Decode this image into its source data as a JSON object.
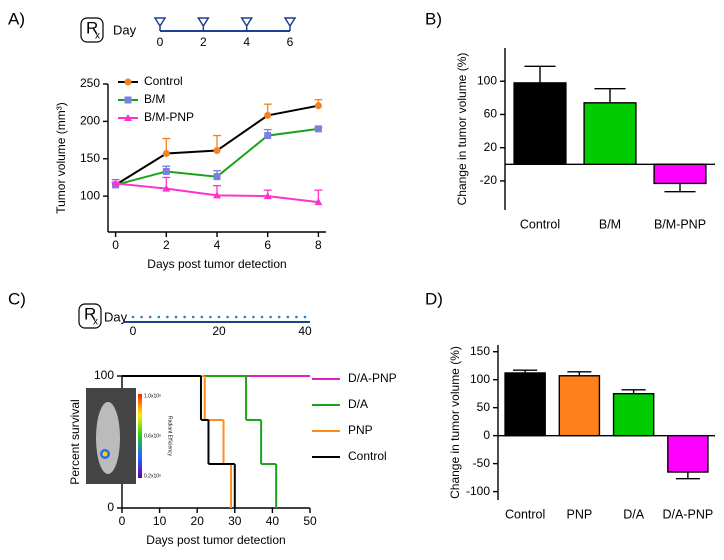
{
  "chart_data": [
    {
      "panel": "A)",
      "type": "line",
      "schedule": {
        "symbol": "R",
        "symbol_sub": "x",
        "label": "Day",
        "xlim": [
          0,
          6
        ],
        "ticks": [
          0,
          2,
          4,
          6
        ],
        "doses": [
          0,
          2,
          4,
          6
        ],
        "style": "triangle"
      },
      "x": [
        0,
        2,
        4,
        6,
        8
      ],
      "xlim": [
        -0.3,
        8.3
      ],
      "xticks": [
        0,
        2,
        4,
        6,
        8
      ],
      "ylim": [
        52,
        250
      ],
      "yticks": [
        100,
        150,
        200,
        250
      ],
      "y_label": "Tumor volume (mm³)",
      "x_label": "Days post tumor detection",
      "legend": "upper left",
      "series": [
        {
          "name": "Control",
          "color": "#000000",
          "marker_color": "#f58220",
          "marker": "circle",
          "values": [
            115,
            157,
            161,
            208,
            221
          ],
          "errors": [
            3,
            20,
            20,
            15,
            8
          ]
        },
        {
          "name": "B/M",
          "color": "#1aa31a",
          "marker_color": "#7b7fe0",
          "marker": "square",
          "values": [
            115,
            133,
            126,
            181,
            190
          ],
          "errors": [
            3,
            7,
            8,
            8,
            2
          ]
        },
        {
          "name": "B/M-PNP",
          "color": "#ff33cc",
          "marker_color": "#ff33cc",
          "marker": "triangle",
          "values": [
            117,
            110,
            101,
            100,
            92
          ],
          "errors": [
            5,
            15,
            13,
            8,
            16
          ]
        }
      ]
    },
    {
      "panel": "B)",
      "type": "bar",
      "categories": [
        "Control",
        "B/M",
        "B/M-PNP"
      ],
      "values": [
        98,
        74,
        -23
      ],
      "errors": [
        20,
        17,
        10
      ],
      "colors": [
        "#000000",
        "#00cc00",
        "#ff00ff"
      ],
      "ylim": [
        -55,
        140
      ],
      "yticks": [
        100,
        60,
        20,
        -20
      ],
      "y_label": "Change in tumor volume (%)"
    },
    {
      "panel": "C)",
      "type": "step",
      "schedule": {
        "symbol": "R",
        "symbol_sub": "x",
        "label": "Day",
        "xlim": [
          0,
          40
        ],
        "ticks": [
          0,
          20,
          40
        ],
        "doses": [
          0,
          2,
          4,
          6,
          8,
          10,
          12,
          14,
          16,
          18,
          20,
          22,
          24,
          26,
          28,
          30,
          32,
          34,
          36,
          38,
          40
        ],
        "style": "dot"
      },
      "xlim": [
        0,
        50
      ],
      "xticks": [
        0,
        10,
        20,
        30,
        40,
        50
      ],
      "ylim": [
        0,
        100
      ],
      "yticks": [
        0,
        25,
        50,
        75,
        100
      ],
      "y_label": "Percent survival",
      "x_label": "Days post tumor detection",
      "legend": "right",
      "inset": {
        "labels": [
          "1.0x10⁸",
          "0.6x10⁸",
          "0.2x10⁸"
        ],
        "title": "Radiant Efficiency"
      },
      "series": [
        {
          "name": "D/A-PNP",
          "color": "#e020c0",
          "x": [
            0,
            50
          ],
          "values": [
            100,
            100
          ]
        },
        {
          "name": "D/A",
          "color": "#1aa31a",
          "x": [
            0,
            33,
            37,
            41
          ],
          "values": [
            100,
            66.7,
            33.3,
            0
          ]
        },
        {
          "name": "PNP",
          "color": "#ff8c1a",
          "x": [
            0,
            22,
            27,
            29
          ],
          "values": [
            100,
            66.7,
            33.3,
            0
          ]
        },
        {
          "name": "Control",
          "color": "#000000",
          "x": [
            0,
            21,
            23,
            30
          ],
          "values": [
            100,
            66.7,
            33.3,
            0
          ]
        }
      ]
    },
    {
      "panel": "D)",
      "type": "bar",
      "categories": [
        "Control",
        "PNP",
        "D/A",
        "D/A-PNP"
      ],
      "values": [
        112,
        107,
        75,
        -65
      ],
      "errors": [
        5,
        7,
        7,
        12
      ],
      "colors": [
        "#000000",
        "#ff7f1a",
        "#00cc00",
        "#ff00ff"
      ],
      "ylim": [
        -115,
        162
      ],
      "yticks": [
        150,
        100,
        50,
        0,
        -50,
        -100
      ],
      "y_label": "Change in tumor volume (%)"
    }
  ]
}
